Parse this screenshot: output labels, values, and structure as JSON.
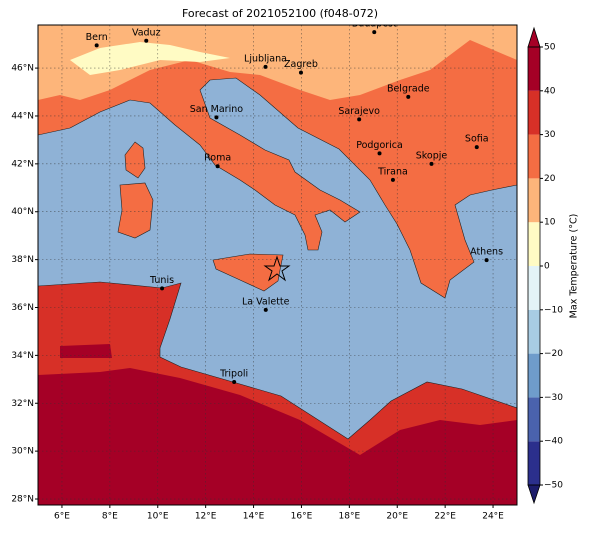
{
  "chart_data": {
    "type": "map",
    "title": "Forecast of 2021052100 (f048-072)",
    "xlim": [
      5,
      25
    ],
    "ylim": [
      27.75,
      47.8
    ],
    "xticks": [
      {
        "value": 6,
        "label": "6°E"
      },
      {
        "value": 8,
        "label": "8°E"
      },
      {
        "value": 10,
        "label": "10°E"
      },
      {
        "value": 12,
        "label": "12°E"
      },
      {
        "value": 14,
        "label": "14°E"
      },
      {
        "value": 16,
        "label": "16°E"
      },
      {
        "value": 18,
        "label": "18°E"
      },
      {
        "value": 20,
        "label": "20°E"
      },
      {
        "value": 22,
        "label": "22°E"
      },
      {
        "value": 24,
        "label": "24°E"
      }
    ],
    "yticks": [
      {
        "value": 28,
        "label": "28°N"
      },
      {
        "value": 30,
        "label": "30°N"
      },
      {
        "value": 32,
        "label": "32°N"
      },
      {
        "value": 34,
        "label": "34°N"
      },
      {
        "value": 36,
        "label": "36°N"
      },
      {
        "value": 38,
        "label": "38°N"
      },
      {
        "value": 40,
        "label": "40°N"
      },
      {
        "value": 42,
        "label": "42°N"
      },
      {
        "value": 44,
        "label": "44°N"
      },
      {
        "value": 46,
        "label": "46°N"
      }
    ],
    "grid": true,
    "cities": [
      {
        "name": "Bern",
        "lon": 7.45,
        "lat": 46.95
      },
      {
        "name": "Vaduz",
        "lon": 9.52,
        "lat": 47.14
      },
      {
        "name": "Budapest",
        "lon": 19.04,
        "lat": 47.5
      },
      {
        "name": "Ljubljana",
        "lon": 14.5,
        "lat": 46.05
      },
      {
        "name": "Zagreb",
        "lon": 15.98,
        "lat": 45.81
      },
      {
        "name": "Belgrade",
        "lon": 20.46,
        "lat": 44.8
      },
      {
        "name": "San Marino",
        "lon": 12.45,
        "lat": 43.94
      },
      {
        "name": "Sarajevo",
        "lon": 18.41,
        "lat": 43.86
      },
      {
        "name": "Sofia",
        "lon": 23.32,
        "lat": 42.7
      },
      {
        "name": "Roma",
        "lon": 12.5,
        "lat": 41.9
      },
      {
        "name": "Podgorica",
        "lon": 19.26,
        "lat": 42.44
      },
      {
        "name": "Skopje",
        "lon": 21.43,
        "lat": 42.0
      },
      {
        "name": "Tirana",
        "lon": 19.82,
        "lat": 41.33
      },
      {
        "name": "Athens",
        "lon": 23.73,
        "lat": 37.98
      },
      {
        "name": "Tunis",
        "lon": 10.18,
        "lat": 36.8
      },
      {
        "name": "La Valette",
        "lon": 14.51,
        "lat": 35.9
      },
      {
        "name": "Tripoli",
        "lon": 13.19,
        "lat": 32.89
      }
    ],
    "colorbar": {
      "label": "Max Temperature (°C)",
      "ticks": [
        {
          "value": -50,
          "label": "−50"
        },
        {
          "value": -40,
          "label": "−40"
        },
        {
          "value": -30,
          "label": "−30"
        },
        {
          "value": -20,
          "label": "−20"
        },
        {
          "value": -10,
          "label": "−10"
        },
        0,
        10,
        20,
        30,
        40,
        50
      ],
      "colors": [
        "#2b2f8c",
        "#4a62ad",
        "#6f9ccb",
        "#a8cce3",
        "#e3f3f7",
        "#fffbc4",
        "#fdb57a",
        "#f46d43",
        "#d73027",
        "#a50026"
      ],
      "extend_colors": [
        "#1c1c6b",
        "#a50026"
      ]
    }
  }
}
